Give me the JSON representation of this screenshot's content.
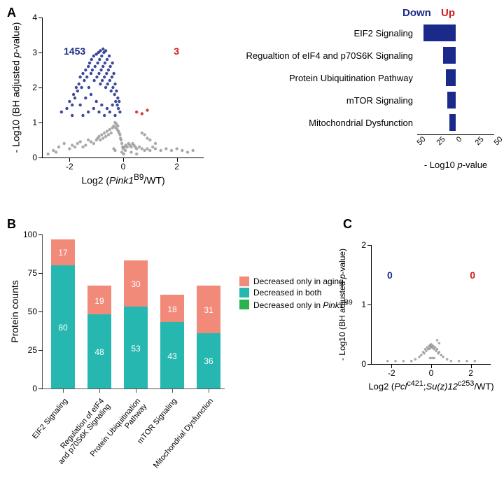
{
  "colors": {
    "navy": "#1a2a8a",
    "red": "#d01c1c",
    "grey": "#9b9b9b",
    "teal": "#26b8b0",
    "salmon": "#f28a7a",
    "green": "#2bb24c",
    "black": "#000000",
    "axis_grey": "#555555",
    "white": "#ffffff"
  },
  "panelA": {
    "label": "A",
    "volcano": {
      "xlabel_prefix": "Log2 (",
      "xlabel_main": "Pink1",
      "xlabel_super": "B9",
      "xlabel_suffix": "/WT)",
      "ylabel_prefix": "- Log10 (BH adjusted ",
      "ylabel_mid": "p",
      "ylabel_suffix": "-value)",
      "xlim": [
        -3,
        3
      ],
      "xticks": [
        -2,
        0,
        2
      ],
      "ylim": [
        0,
        4
      ],
      "yticks": [
        0,
        1,
        2,
        3,
        4
      ],
      "down_label": "1453",
      "up_label": "3",
      "scatter_grey": [
        [
          -2.6,
          0.2
        ],
        [
          -2.4,
          0.3
        ],
        [
          -2.2,
          0.4
        ],
        [
          -2.0,
          0.25
        ],
        [
          -1.9,
          0.35
        ],
        [
          -1.8,
          0.3
        ],
        [
          -1.7,
          0.4
        ],
        [
          -1.6,
          0.45
        ],
        [
          -1.5,
          0.3
        ],
        [
          -1.4,
          0.35
        ],
        [
          -1.3,
          0.5
        ],
        [
          -1.2,
          0.45
        ],
        [
          -1.1,
          0.4
        ],
        [
          -1.0,
          0.5
        ],
        [
          -0.95,
          0.55
        ],
        [
          -0.9,
          0.6
        ],
        [
          -0.85,
          0.5
        ],
        [
          -0.8,
          0.65
        ],
        [
          -0.75,
          0.55
        ],
        [
          -0.7,
          0.7
        ],
        [
          -0.65,
          0.6
        ],
        [
          -0.6,
          0.75
        ],
        [
          -0.55,
          0.65
        ],
        [
          -0.5,
          0.8
        ],
        [
          -0.45,
          0.7
        ],
        [
          -0.4,
          0.85
        ],
        [
          -0.35,
          0.9
        ],
        [
          -0.3,
          1.0
        ],
        [
          -0.28,
          0.85
        ],
        [
          -0.25,
          0.95
        ],
        [
          -0.22,
          0.8
        ],
        [
          -0.2,
          0.9
        ],
        [
          -0.18,
          0.75
        ],
        [
          -0.15,
          0.7
        ],
        [
          -0.12,
          0.65
        ],
        [
          -0.1,
          0.55
        ],
        [
          -0.08,
          0.5
        ],
        [
          -0.05,
          0.4
        ],
        [
          -0.02,
          0.3
        ],
        [
          0,
          0.25
        ],
        [
          0.05,
          0.3
        ],
        [
          0.1,
          0.35
        ],
        [
          0.15,
          0.3
        ],
        [
          0.2,
          0.4
        ],
        [
          0.25,
          0.35
        ],
        [
          0.3,
          0.3
        ],
        [
          0.35,
          0.4
        ],
        [
          0.4,
          0.35
        ],
        [
          0.45,
          0.3
        ],
        [
          0.5,
          0.25
        ],
        [
          0.6,
          0.3
        ],
        [
          0.7,
          0.25
        ],
        [
          0.8,
          0.2
        ],
        [
          0.9,
          0.25
        ],
        [
          1.0,
          0.2
        ],
        [
          1.1,
          0.3
        ],
        [
          1.2,
          0.25
        ],
        [
          1.4,
          0.2
        ],
        [
          1.6,
          0.25
        ],
        [
          1.8,
          0.2
        ],
        [
          2.0,
          0.25
        ],
        [
          2.2,
          0.2
        ],
        [
          2.4,
          0.15
        ],
        [
          2.6,
          0.2
        ],
        [
          -2.8,
          0.1
        ],
        [
          -2.5,
          0.15
        ],
        [
          -0.3,
          0.2
        ],
        [
          -0.35,
          0.25
        ],
        [
          0.3,
          0.15
        ],
        [
          0.5,
          0.1
        ],
        [
          0.7,
          0.7
        ],
        [
          0.8,
          0.65
        ],
        [
          0.9,
          0.55
        ],
        [
          1.0,
          0.5
        ],
        [
          1.2,
          0.4
        ],
        [
          -0.05,
          0.15
        ],
        [
          0.02,
          0.1
        ],
        [
          0.08,
          0.2
        ]
      ],
      "scatter_blue": [
        [
          -2.3,
          1.3
        ],
        [
          -2.1,
          1.4
        ],
        [
          -2.0,
          1.6
        ],
        [
          -1.9,
          1.5
        ],
        [
          -1.85,
          1.8
        ],
        [
          -1.8,
          1.7
        ],
        [
          -1.75,
          2.0
        ],
        [
          -1.7,
          1.9
        ],
        [
          -1.65,
          2.1
        ],
        [
          -1.6,
          2.3
        ],
        [
          -1.55,
          2.0
        ],
        [
          -1.5,
          2.4
        ],
        [
          -1.45,
          2.2
        ],
        [
          -1.4,
          2.5
        ],
        [
          -1.35,
          2.3
        ],
        [
          -1.3,
          2.6
        ],
        [
          -1.28,
          2.0
        ],
        [
          -1.25,
          2.7
        ],
        [
          -1.2,
          2.4
        ],
        [
          -1.18,
          2.8
        ],
        [
          -1.15,
          2.5
        ],
        [
          -1.1,
          2.9
        ],
        [
          -1.08,
          2.2
        ],
        [
          -1.05,
          2.6
        ],
        [
          -1.0,
          2.95
        ],
        [
          -0.98,
          2.3
        ],
        [
          -0.95,
          2.7
        ],
        [
          -0.92,
          3.0
        ],
        [
          -0.9,
          2.4
        ],
        [
          -0.88,
          2.8
        ],
        [
          -0.85,
          2.1
        ],
        [
          -0.82,
          2.5
        ],
        [
          -0.8,
          2.9
        ],
        [
          -0.78,
          2.2
        ],
        [
          -0.75,
          2.6
        ],
        [
          -0.72,
          3.0
        ],
        [
          -0.7,
          2.3
        ],
        [
          -0.68,
          2.7
        ],
        [
          -0.65,
          2.0
        ],
        [
          -0.62,
          2.4
        ],
        [
          -0.6,
          2.8
        ],
        [
          -0.58,
          2.1
        ],
        [
          -0.55,
          2.5
        ],
        [
          -0.52,
          2.9
        ],
        [
          -0.5,
          2.2
        ],
        [
          -0.48,
          2.6
        ],
        [
          -0.45,
          1.9
        ],
        [
          -0.42,
          2.3
        ],
        [
          -0.4,
          2.7
        ],
        [
          -0.38,
          2.0
        ],
        [
          -0.35,
          2.4
        ],
        [
          -0.32,
          1.8
        ],
        [
          -0.3,
          2.1
        ],
        [
          -0.28,
          1.6
        ],
        [
          -0.25,
          1.9
        ],
        [
          -0.22,
          1.5
        ],
        [
          -0.2,
          1.7
        ],
        [
          -0.18,
          1.4
        ],
        [
          -0.15,
          1.6
        ],
        [
          -0.12,
          1.3
        ],
        [
          -1.6,
          1.5
        ],
        [
          -1.4,
          1.7
        ],
        [
          -1.2,
          1.8
        ],
        [
          -1.0,
          1.6
        ],
        [
          -0.8,
          1.5
        ],
        [
          -0.6,
          1.4
        ],
        [
          -0.4,
          1.5
        ],
        [
          -1.9,
          1.2
        ],
        [
          -0.7,
          1.2
        ],
        [
          -0.5,
          1.3
        ],
        [
          -0.3,
          1.2
        ],
        [
          -0.9,
          1.3
        ],
        [
          -1.1,
          1.4
        ],
        [
          -1.3,
          1.3
        ],
        [
          -1.5,
          1.2
        ],
        [
          -0.85,
          3.05
        ],
        [
          -0.75,
          3.1
        ],
        [
          -0.65,
          3.05
        ]
      ],
      "scatter_red": [
        [
          0.5,
          1.3
        ],
        [
          0.7,
          1.25
        ],
        [
          0.9,
          1.35
        ]
      ]
    },
    "pathways": {
      "header_down": "Down",
      "header_up": "Up",
      "xaxis_label_prefix": "- Log10 ",
      "xaxis_label_mid": "p",
      "xaxis_label_suffix": "-value",
      "xlim": [
        -60,
        60
      ],
      "xticks": [
        -50,
        -25,
        0,
        25,
        50
      ],
      "rows": [
        {
          "label": "EIF2 Signaling",
          "value": 50
        },
        {
          "label": "Regualtion of eIF4 and p70S6K Signaling",
          "value": 20
        },
        {
          "label": "Protein Ubiquitination Pathway",
          "value": 15
        },
        {
          "label": "mTOR Signaling",
          "value": 13
        },
        {
          "label": "Mitochondrial Dysfunction",
          "value": 10
        }
      ]
    }
  },
  "panelB": {
    "label": "B",
    "ylabel": "Protein counts",
    "ylim": [
      0,
      100
    ],
    "yticks": [
      0,
      25,
      50,
      75,
      100
    ],
    "legend": {
      "aging": "Decreased only in aging",
      "both": "Decreased in both",
      "pink1_prefix": "Decreased only in ",
      "pink1_main": "Pink1",
      "pink1_super": "B9"
    },
    "bars": [
      {
        "xlabel": "EIF2 Signaling",
        "both": 80,
        "aging": 17,
        "pink1": 0
      },
      {
        "xlabel": "Regulation of eIF4\nand p70S6K Signaling",
        "both": 48,
        "aging": 19,
        "pink1": 0
      },
      {
        "xlabel": "Protein Ubiquitination Pathway",
        "both": 53,
        "aging": 30,
        "pink1": 0
      },
      {
        "xlabel": "mTOR Signaling",
        "both": 43,
        "aging": 18,
        "pink1": 0
      },
      {
        "xlabel": "Mitochondrial Dysfunction",
        "both": 36,
        "aging": 31,
        "pink1": 0
      }
    ]
  },
  "panelC": {
    "label": "C",
    "xlabel_prefix": "Log2 (",
    "xlabel_g1": "Pcl",
    "xlabel_g1_super": "c421",
    "xlabel_sep": ";",
    "xlabel_g2": "Su(z)12",
    "xlabel_g2_super": "c253",
    "xlabel_suffix": "/WT)",
    "ylabel_prefix": "- Log10 (BH adjusted ",
    "ylabel_mid": "p",
    "ylabel_suffix": "-value)",
    "xlim": [
      -3,
      3
    ],
    "xticks": [
      -2,
      0,
      2
    ],
    "ylim": [
      0,
      2
    ],
    "yticks": [
      0,
      1,
      2
    ],
    "down_label": "0",
    "up_label": "0",
    "scatter_grey": [
      [
        -2.2,
        0.05
      ],
      [
        -1.8,
        0.05
      ],
      [
        -1.4,
        0.05
      ],
      [
        -1.0,
        0.05
      ],
      [
        -0.8,
        0.08
      ],
      [
        -0.6,
        0.12
      ],
      [
        -0.5,
        0.15
      ],
      [
        -0.4,
        0.2
      ],
      [
        -0.35,
        0.18
      ],
      [
        -0.3,
        0.25
      ],
      [
        -0.25,
        0.22
      ],
      [
        -0.2,
        0.28
      ],
      [
        -0.15,
        0.25
      ],
      [
        -0.1,
        0.3
      ],
      [
        -0.08,
        0.26
      ],
      [
        -0.05,
        0.32
      ],
      [
        -0.02,
        0.28
      ],
      [
        0,
        0.33
      ],
      [
        0.02,
        0.29
      ],
      [
        0.05,
        0.31
      ],
      [
        0.08,
        0.27
      ],
      [
        0.1,
        0.3
      ],
      [
        0.15,
        0.25
      ],
      [
        0.2,
        0.28
      ],
      [
        0.25,
        0.22
      ],
      [
        0.3,
        0.25
      ],
      [
        0.35,
        0.18
      ],
      [
        0.4,
        0.2
      ],
      [
        0.5,
        0.15
      ],
      [
        0.6,
        0.12
      ],
      [
        0.8,
        0.08
      ],
      [
        1.0,
        0.05
      ],
      [
        1.4,
        0.05
      ],
      [
        1.8,
        0.05
      ],
      [
        2.2,
        0.05
      ],
      [
        0.3,
        0.4
      ],
      [
        0.4,
        0.35
      ],
      [
        -0.05,
        0.1
      ],
      [
        0.05,
        0.1
      ],
      [
        0.15,
        0.1
      ]
    ]
  }
}
